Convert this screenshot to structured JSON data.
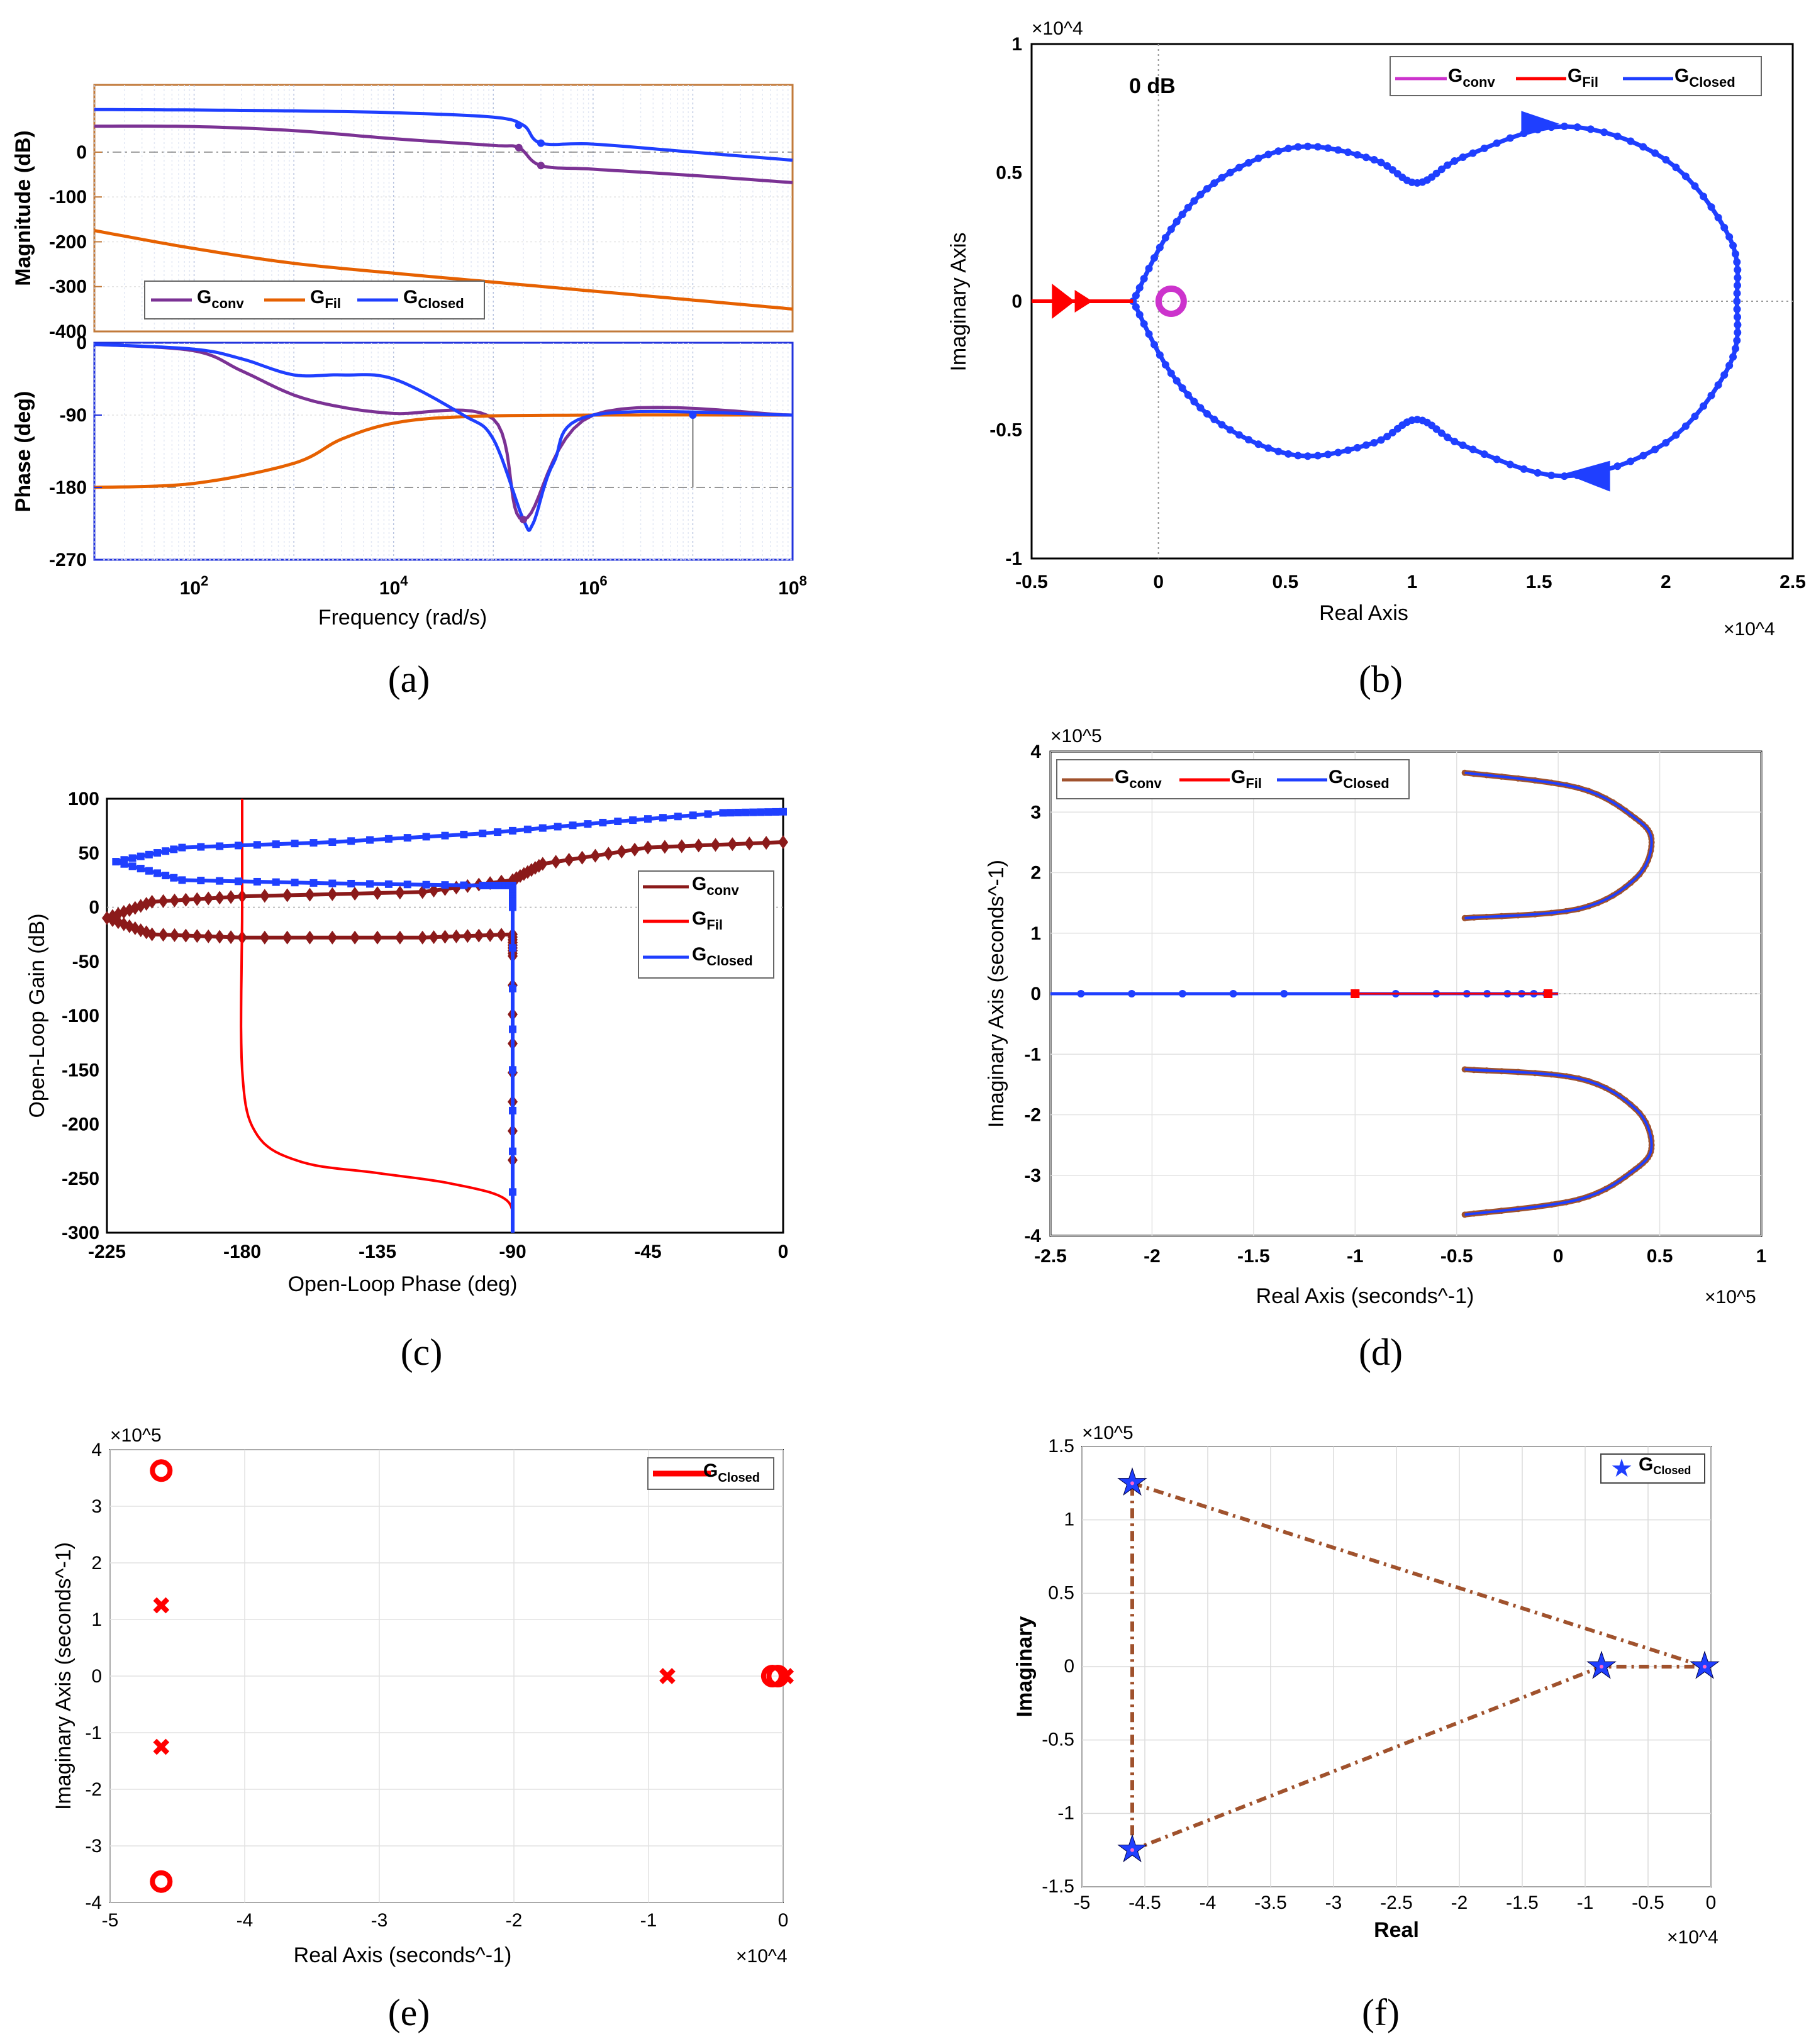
{
  "figure": {
    "panel_labels": [
      "(a)",
      "(b)",
      "(c)",
      "(d)",
      "(e)",
      "(f)"
    ],
    "colors": {
      "conv": "#7b3294",
      "fil": "#e66101",
      "closed": "#1f3fff",
      "red": "#ff0000",
      "maroon": "#8b1a1a",
      "brown": "#a0522d"
    }
  },
  "chart_data": [
    {
      "id": "a",
      "type": "line",
      "title": "",
      "subplots": [
        {
          "name": "magnitude",
          "ylabel": "Magnitude (dB)",
          "ylim": [
            -400,
            150
          ],
          "yticks": [
            "0",
            "-100",
            "-200",
            "-300",
            "-400"
          ],
          "series": [
            {
              "name": "G_conv",
              "x": [
                10,
                100,
                1000,
                10000,
                100000,
                180000,
                300000,
                1000000,
                10000000,
                100000000
              ],
              "y": [
                58,
                57,
                48,
                30,
                15,
                10,
                -30,
                -38,
                -52,
                -68
              ]
            },
            {
              "name": "G_Fil",
              "x": [
                10,
                100,
                1000,
                10000,
                100000,
                1000000,
                10000000,
                100000000
              ],
              "y": [
                -175,
                -215,
                -248,
                -270,
                -290,
                -310,
                -330,
                -350
              ]
            },
            {
              "name": "G_Closed",
              "x": [
                10,
                100,
                1000,
                10000,
                100000,
                200000,
                300000,
                1000000,
                10000000,
                100000000
              ],
              "y": [
                95,
                94,
                92,
                88,
                78,
                60,
                20,
                18,
                0,
                -18
              ]
            }
          ]
        },
        {
          "name": "phase",
          "ylabel": "Phase (deg)",
          "ylim": [
            -270,
            0
          ],
          "yticks": [
            "0",
            "-90",
            "-180",
            "-270"
          ],
          "series": [
            {
              "name": "G_conv",
              "x": [
                10,
                100,
                300,
                1000,
                3000,
                10000,
                100000,
                200000,
                1000000,
                100000000
              ],
              "y": [
                -2,
                -10,
                -35,
                -65,
                -80,
                -88,
                -95,
                -220,
                -90,
                -90
              ]
            },
            {
              "name": "G_Fil",
              "x": [
                10,
                100,
                1000,
                3000,
                10000,
                50000,
                1000000,
                100000000
              ],
              "y": [
                -180,
                -175,
                -150,
                -120,
                -100,
                -92,
                -90,
                -90
              ]
            },
            {
              "name": "G_Closed",
              "x": [
                10,
                100,
                300,
                1000,
                3000,
                10000,
                50000,
                100000,
                200000,
                250000,
                400000,
                1000000,
                100000000
              ],
              "y": [
                -2,
                -8,
                -20,
                -40,
                -40,
                -45,
                -90,
                -120,
                -220,
                -225,
                -150,
                -90,
                -90
              ]
            }
          ]
        }
      ],
      "xlabel": "Frequency  (rad/s)",
      "xscale": "log",
      "xlim": [
        10,
        100000000
      ],
      "xticks": [
        "10^2",
        "10^4",
        "10^6",
        "10^8"
      ],
      "legend": {
        "entries": [
          "G_conv",
          "G_Fil",
          "G_Closed"
        ],
        "placement": "bottom of magnitude plot"
      }
    },
    {
      "id": "b",
      "type": "line",
      "title": "",
      "annotation": "0 dB",
      "xlabel": "Real Axis",
      "ylabel": "Imaginary Axis",
      "x_exponent": "×10^4",
      "y_exponent": "×10^4",
      "xlim": [
        -0.5,
        2.5
      ],
      "ylim": [
        -1,
        1
      ],
      "xticks": [
        "-0.5",
        "0",
        "0.5",
        "1",
        "1.5",
        "2",
        "2.5"
      ],
      "yticks": [
        "-1",
        "-0.5",
        "0",
        "0.5",
        "1"
      ],
      "series": [
        {
          "name": "G_conv",
          "points": [
            [
              0.03,
              0.0
            ],
            [
              0.05,
              0.05
            ],
            [
              0.08,
              0.0
            ],
            [
              0.05,
              -0.05
            ]
          ]
        },
        {
          "name": "G_Fil",
          "points": [
            [
              -0.5,
              0.0
            ],
            [
              -0.1,
              0.0
            ]
          ]
        },
        {
          "name": "G_Closed",
          "points": [
            [
              -0.1,
              0.0
            ],
            [
              0.05,
              0.28
            ],
            [
              0.25,
              0.48
            ],
            [
              0.55,
              0.6
            ],
            [
              0.85,
              0.55
            ],
            [
              1.02,
              0.46
            ],
            [
              1.2,
              0.56
            ],
            [
              1.6,
              0.68
            ],
            [
              2.0,
              0.55
            ],
            [
              2.25,
              0.25
            ],
            [
              2.28,
              0.0
            ],
            [
              2.25,
              -0.25
            ],
            [
              2.0,
              -0.55
            ],
            [
              1.6,
              -0.68
            ],
            [
              1.2,
              -0.56
            ],
            [
              1.02,
              -0.46
            ],
            [
              0.85,
              -0.55
            ],
            [
              0.55,
              -0.6
            ],
            [
              0.25,
              -0.48
            ],
            [
              0.05,
              -0.28
            ],
            [
              -0.1,
              0.0
            ]
          ]
        }
      ],
      "legend": {
        "entries": [
          "G_conv",
          "G_Fil",
          "G_Closed"
        ],
        "placement": "top-right"
      }
    },
    {
      "id": "c",
      "type": "line",
      "title": "",
      "xlabel": "Open-Loop Phase (deg)",
      "ylabel": "Open-Loop Gain (dB)",
      "xlim": [
        -225,
        0
      ],
      "ylim": [
        -300,
        100
      ],
      "xticks": [
        "-225",
        "-180",
        "-135",
        "-90",
        "-45",
        "0"
      ],
      "yticks": [
        "100",
        "50",
        "0",
        "-50",
        "-100",
        "-150",
        "-200",
        "-250",
        "-300"
      ],
      "series": [
        {
          "name": "G_conv",
          "points": [
            [
              0,
              60
            ],
            [
              -45,
              55
            ],
            [
              -80,
              40
            ],
            [
              -90,
              25
            ],
            [
              -120,
              14
            ],
            [
              -180,
              10
            ],
            [
              -210,
              5
            ],
            [
              -225,
              -10
            ],
            [
              -210,
              -25
            ],
            [
              -180,
              -28
            ],
            [
              -120,
              -28
            ],
            [
              -90,
              -25
            ],
            [
              -90,
              -45
            ],
            [
              -90,
              -260
            ]
          ]
        },
        {
          "name": "G_Fil",
          "points": [
            [
              -180,
              100
            ],
            [
              -180,
              0
            ],
            [
              -180,
              -150
            ],
            [
              -175,
              -210
            ],
            [
              -160,
              -235
            ],
            [
              -135,
              -245
            ],
            [
              -110,
              -255
            ],
            [
              -92,
              -270
            ],
            [
              -90,
              -300
            ]
          ]
        },
        {
          "name": "G_Closed",
          "points": [
            [
              0,
              88
            ],
            [
              -20,
              87
            ],
            [
              -60,
              78
            ],
            [
              -100,
              68
            ],
            [
              -150,
              60
            ],
            [
              -200,
              55
            ],
            [
              -222,
              42
            ],
            [
              -200,
              25
            ],
            [
              -150,
              22
            ],
            [
              -100,
              20
            ],
            [
              -90,
              20
            ],
            [
              -90,
              0
            ],
            [
              -90,
              -300
            ]
          ]
        }
      ],
      "legend": {
        "entries": [
          "G_conv",
          "G_Fil",
          "G_Closed"
        ],
        "placement": "right"
      }
    },
    {
      "id": "d",
      "type": "line",
      "title": "",
      "xlabel": "Real Axis (seconds^-1)",
      "ylabel": "Imaginary Axis (seconds^-1)",
      "x_exponent": "×10^5",
      "y_exponent": "×10^5",
      "xlim": [
        -2.5,
        1
      ],
      "ylim": [
        -4,
        4
      ],
      "xticks": [
        "-2.5",
        "-2",
        "-1.5",
        "-1",
        "-0.5",
        "0",
        "0.5",
        "1"
      ],
      "yticks": [
        "4",
        "3",
        "2",
        "1",
        "0",
        "-1",
        "-2",
        "-3",
        "-4"
      ],
      "series": [
        {
          "name": "G_conv",
          "points": [
            [
              -0.46,
              3.65
            ],
            [
              0.1,
              3.4
            ],
            [
              0.38,
              2.9
            ],
            [
              0.46,
              2.5
            ],
            [
              0.38,
              1.9
            ],
            [
              0.1,
              1.4
            ],
            [
              -0.46,
              1.25
            ]
          ]
        },
        {
          "name": "G_Fil",
          "points": [
            [
              -1.0,
              0.0
            ],
            [
              0.0,
              0.0
            ]
          ]
        },
        {
          "name": "G_Closed",
          "points": [
            [
              -2.5,
              0.0
            ],
            [
              0.0,
              0.0
            ]
          ]
        }
      ],
      "legend": {
        "entries": [
          "G_conv",
          "G_Fil",
          "G_Closed"
        ],
        "placement": "top-left"
      }
    },
    {
      "id": "e",
      "type": "scatter",
      "title": "",
      "xlabel": "Real Axis (seconds^-1)",
      "ylabel": "Imaginary Axis (seconds^-1)",
      "x_exponent": "×10^4",
      "y_exponent": "×10^5",
      "xlim": [
        -5,
        0
      ],
      "ylim": [
        -4,
        4
      ],
      "xticks": [
        "-5",
        "-4",
        "-3",
        "-2",
        "-1",
        "0"
      ],
      "yticks": [
        "4",
        "3",
        "2",
        "1",
        "0",
        "-1",
        "-2",
        "-3",
        "-4"
      ],
      "zeros": [
        [
          -4.62,
          3.63
        ],
        [
          -4.62,
          -3.63
        ],
        [
          -0.08,
          0.0
        ],
        [
          -0.04,
          0.0
        ]
      ],
      "poles": [
        [
          -4.62,
          1.25
        ],
        [
          -4.62,
          -1.25
        ],
        [
          -0.86,
          0.0
        ],
        [
          0.02,
          0.0
        ]
      ],
      "legend": {
        "entries": [
          "G_Closed"
        ],
        "placement": "top-right"
      }
    },
    {
      "id": "f",
      "type": "scatter",
      "title": "",
      "xlabel": "Real",
      "ylabel": "Imaginary",
      "x_exponent": "×10^4",
      "y_exponent": "×10^5",
      "xlim": [
        -5,
        0
      ],
      "ylim": [
        -1.5,
        1.5
      ],
      "xticks": [
        "-5",
        "-4.5",
        "-4",
        "-3.5",
        "-3",
        "-2.5",
        "-2",
        "-1.5",
        "-1",
        "-0.5",
        "0"
      ],
      "yticks": [
        "1.5",
        "1",
        "0.5",
        "0",
        "-0.5",
        "-1",
        "-1.5"
      ],
      "points": [
        [
          -4.6,
          1.25
        ],
        [
          -0.87,
          0.0
        ],
        [
          -0.05,
          0.0
        ],
        [
          -4.6,
          -1.25
        ]
      ],
      "polygon_order": [
        0,
        2,
        1,
        3,
        0
      ],
      "legend": {
        "entries": [
          "G_Closed"
        ],
        "placement": "top-right"
      }
    }
  ]
}
